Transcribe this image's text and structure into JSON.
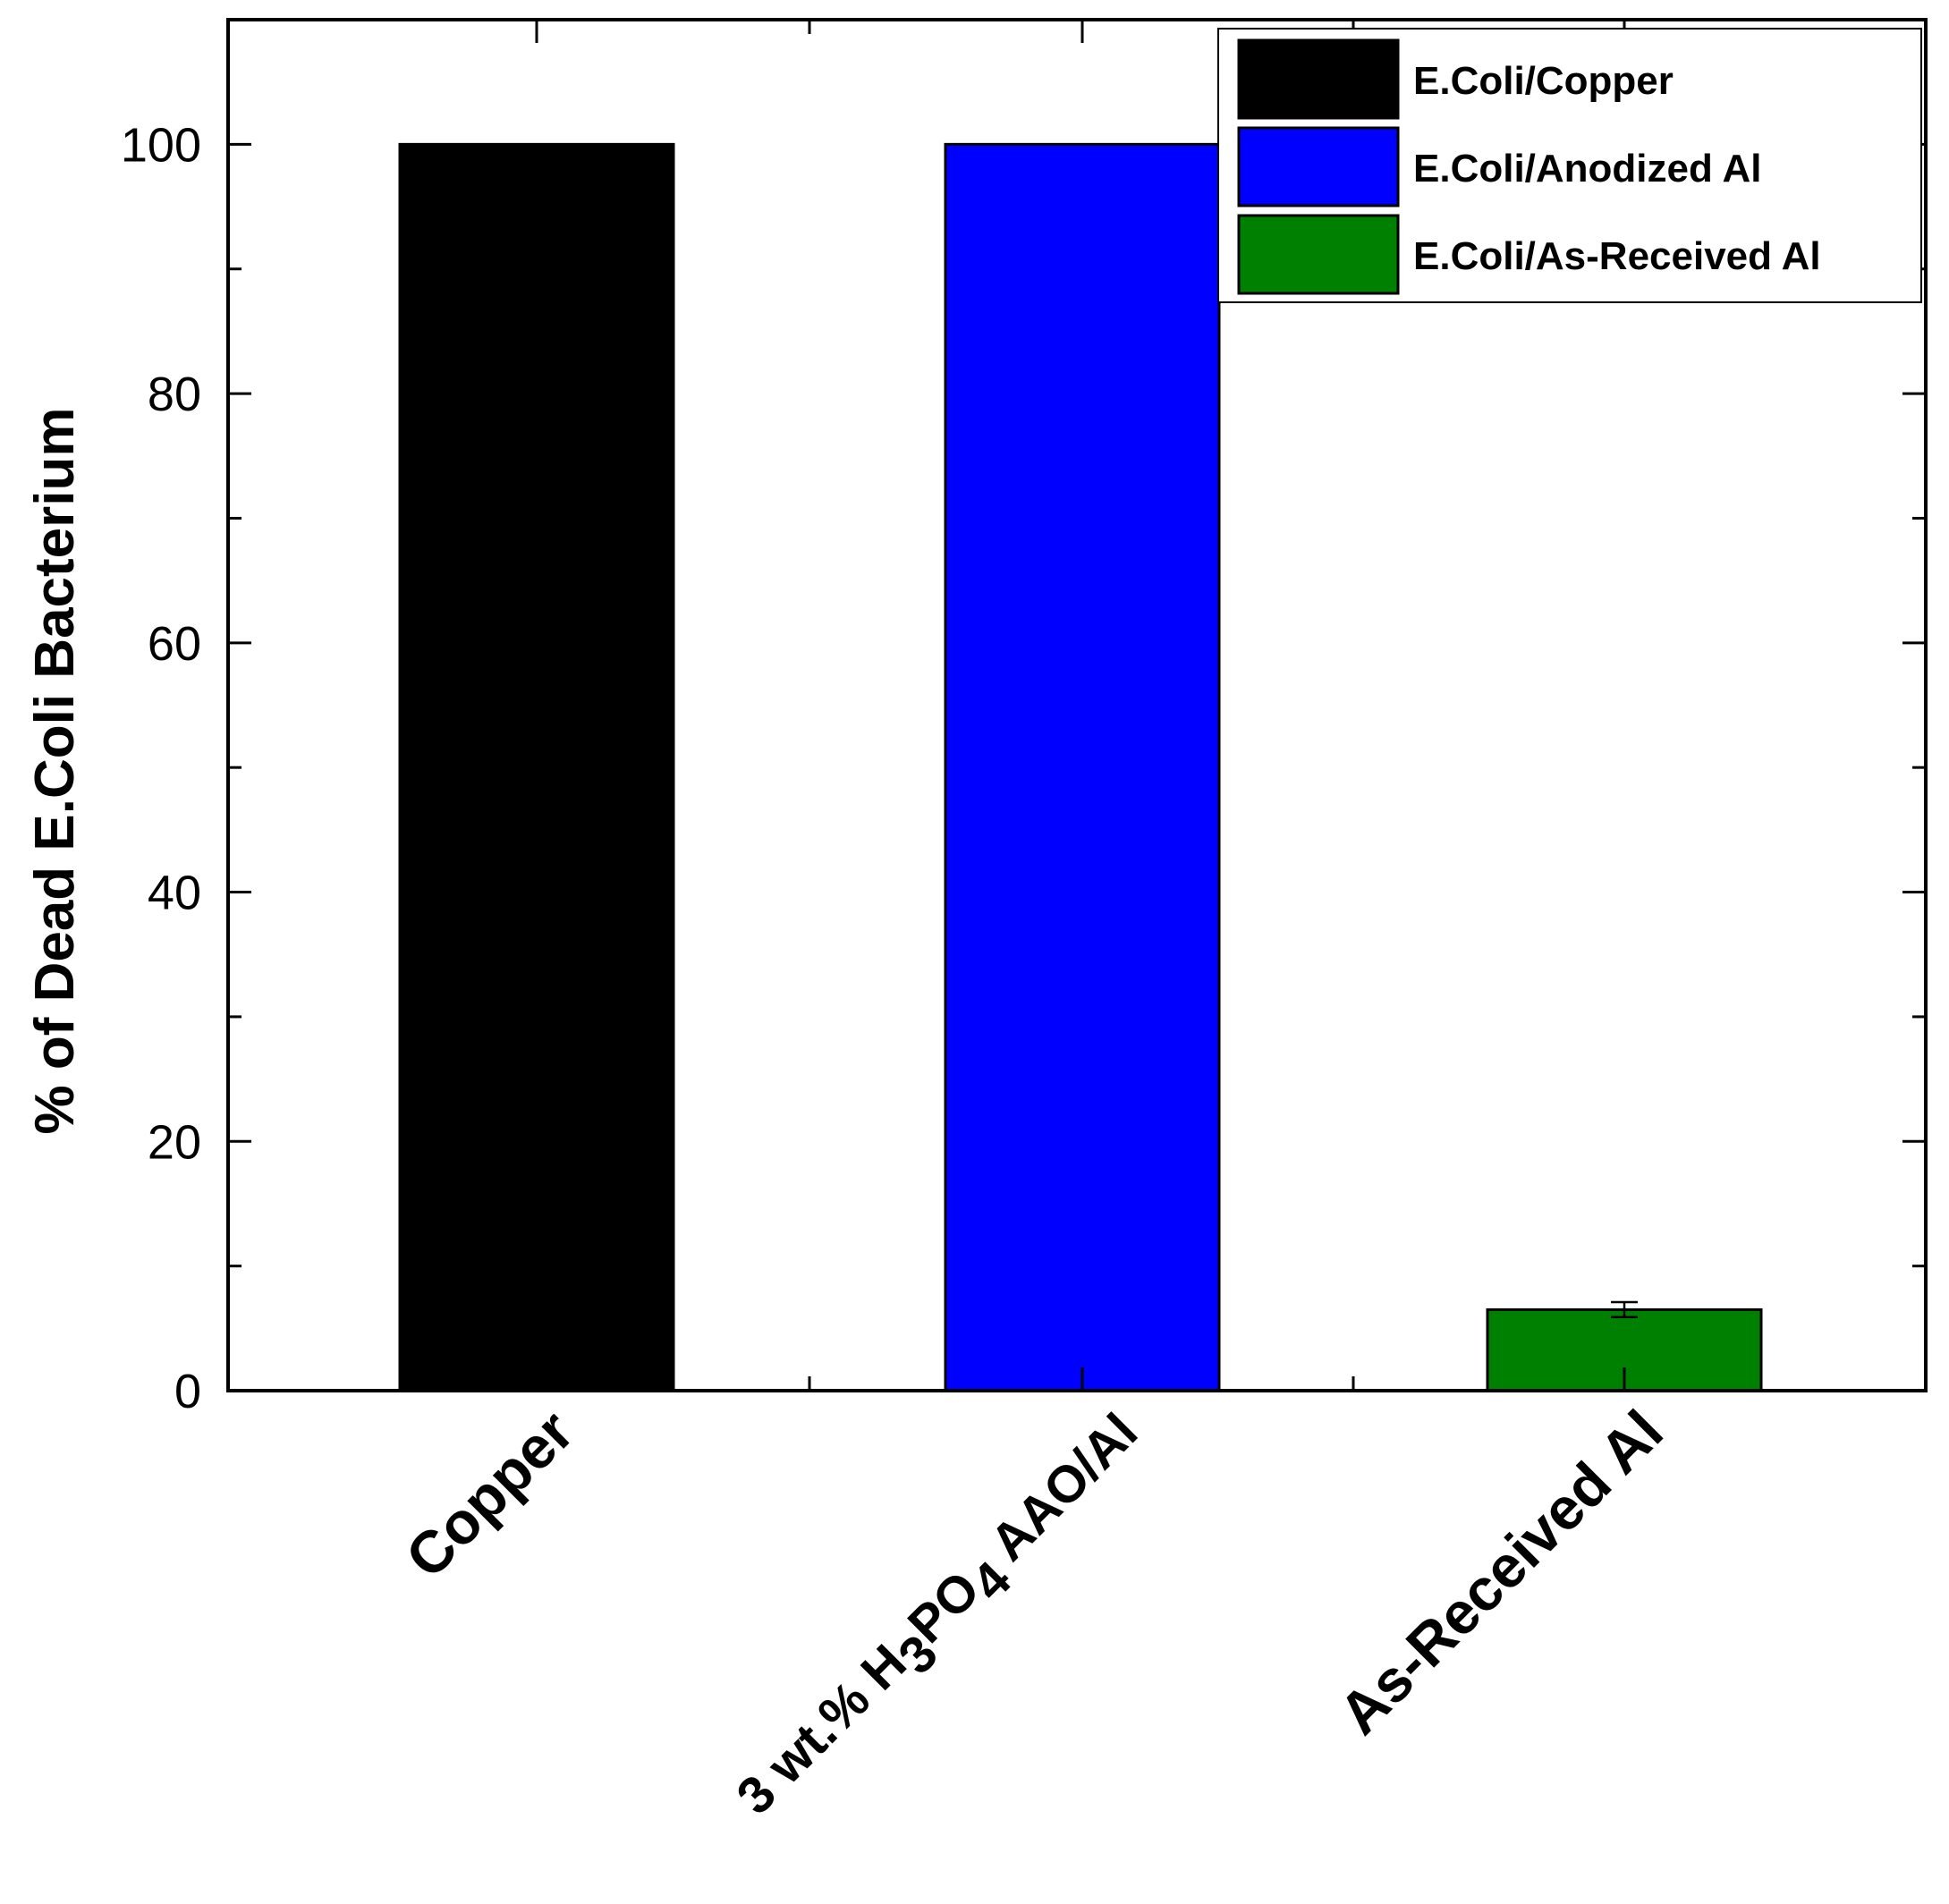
{
  "chart_data": {
    "type": "bar",
    "title": "",
    "xlabel": "",
    "ylabel": "% of Dead E.Coli Bacterium",
    "ylim": [
      0,
      110
    ],
    "yticks": [
      0,
      20,
      40,
      60,
      80,
      100
    ],
    "grid": false,
    "legend_position": "top-right",
    "categories": [
      "Copper",
      "3 wt.% H3PO4 AAO/Al",
      "As-Received Al"
    ],
    "category_labels": [
      {
        "parts": [
          {
            "text": "Copper"
          }
        ]
      },
      {
        "parts": [
          {
            "text": "3 wt.% H"
          },
          {
            "text": "3",
            "sub": true
          },
          {
            "text": "PO"
          },
          {
            "text": "4",
            "sub": true
          },
          {
            "text": " AAO/Al"
          }
        ]
      },
      {
        "parts": [
          {
            "text": "As-Received Al"
          }
        ]
      }
    ],
    "series": [
      {
        "name": "E.Coli/Copper",
        "color": "#000000",
        "values": [
          100,
          null,
          null
        ]
      },
      {
        "name": "E.Coli/Anodized Al",
        "color": "#0000FF",
        "values": [
          null,
          100,
          null
        ]
      },
      {
        "name": "E.Coli/As-Received Al",
        "color": "#008000",
        "values": [
          null,
          null,
          6.5
        ],
        "error": [
          null,
          null,
          0.6
        ]
      }
    ]
  }
}
